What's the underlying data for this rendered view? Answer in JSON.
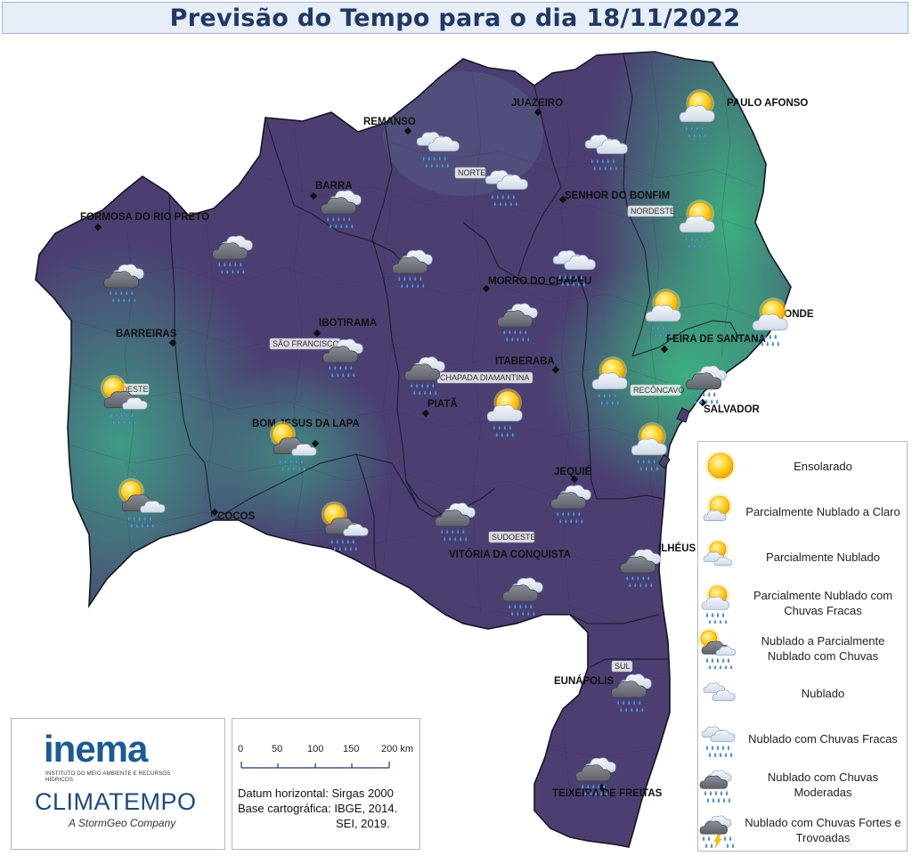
{
  "title": "Previsão do Tempo para o dia 18/11/2022",
  "cities": [
    {
      "name": "REMANSO"
    },
    {
      "name": "JUAZEIRO"
    },
    {
      "name": "PAULO AFONSO"
    },
    {
      "name": "BARRA"
    },
    {
      "name": "FORMOSA DO RIO PRETO"
    },
    {
      "name": "SENHOR DO BONFIM"
    },
    {
      "name": "MORRO DO CHAPÉU"
    },
    {
      "name": "IBOTIRAMA"
    },
    {
      "name": "BARREIRAS"
    },
    {
      "name": "CONDE"
    },
    {
      "name": "FEIRA DE SANTANA"
    },
    {
      "name": "ITABERABA"
    },
    {
      "name": "PIATÃ"
    },
    {
      "name": "SALVADOR"
    },
    {
      "name": "BOM JESUS DA LAPA"
    },
    {
      "name": "JEQUIÉ"
    },
    {
      "name": "COCOS"
    },
    {
      "name": "ILHÉUS"
    },
    {
      "name": "VITÓRIA DA CONQUISTA"
    },
    {
      "name": "EUNÁPOLIS"
    },
    {
      "name": "TEIXEIRA DE FREITAS"
    }
  ],
  "regions": [
    {
      "name": "NORTE"
    },
    {
      "name": "NORDESTE"
    },
    {
      "name": "SÃO FRANCISCO"
    },
    {
      "name": "OESTE"
    },
    {
      "name": "CHAPADA DIAMANTINA"
    },
    {
      "name": "RECÔNCAVO"
    },
    {
      "name": "SUDOESTE"
    },
    {
      "name": "SUL"
    }
  ],
  "forecast_icons": [
    {
      "type": "nublado-chuvas-fracas"
    },
    {
      "type": "nublado-chuvas-fracas"
    },
    {
      "type": "parcialmente-nublado-chuvas-fracas"
    },
    {
      "type": "nublado-chuvas-fracas"
    },
    {
      "type": "nublado-chuvas-moderadas"
    },
    {
      "type": "parcialmente-nublado-chuvas-fracas"
    },
    {
      "type": "nublado-chuvas-moderadas"
    },
    {
      "type": "nublado-chuvas-moderadas"
    },
    {
      "type": "nublado-chuvas-moderadas"
    },
    {
      "type": "nublado-chuvas-fracas"
    },
    {
      "type": "nublado-chuvas-moderadas"
    },
    {
      "type": "parcialmente-nublado-chuvas-fracas"
    },
    {
      "type": "parcialmente-nublado-chuvas-fracas"
    },
    {
      "type": "nublado-chuvas-moderadas"
    },
    {
      "type": "nublado-parcialmente-chuvas"
    },
    {
      "type": "nublado-chuvas-moderadas"
    },
    {
      "type": "parcialmente-nublado-chuvas-fracas"
    },
    {
      "type": "parcialmente-nublado-chuvas-fracas"
    },
    {
      "type": "nublado-chuvas-moderadas"
    },
    {
      "type": "nublado-parcialmente-chuvas"
    },
    {
      "type": "parcialmente-nublado-chuvas-fracas"
    },
    {
      "type": "nublado-parcialmente-chuvas"
    },
    {
      "type": "nublado-parcialmente-chuvas"
    },
    {
      "type": "nublado-chuvas-moderadas"
    },
    {
      "type": "nublado-chuvas-moderadas"
    },
    {
      "type": "nublado-chuvas-moderadas"
    },
    {
      "type": "nublado-chuvas-moderadas"
    },
    {
      "type": "nublado-chuvas-moderadas"
    },
    {
      "type": "nublado-chuvas-moderadas"
    }
  ],
  "legend": [
    {
      "type": "ensolarado",
      "label": "Ensolarado"
    },
    {
      "type": "parcialmente-nublado-claro",
      "label": "Parcialmente Nublado a Claro"
    },
    {
      "type": "parcialmente-nublado",
      "label": "Parcialmente Nublado"
    },
    {
      "type": "parcialmente-nublado-chuvas-fracas",
      "label": "Parcialmente Nublado com Chuvas Fracas"
    },
    {
      "type": "nublado-parcialmente-chuvas",
      "label": "Nublado a Parcialmente Nublado com Chuvas"
    },
    {
      "type": "nublado",
      "label": "Nublado"
    },
    {
      "type": "nublado-chuvas-fracas",
      "label": "Nublado com Chuvas Fracas"
    },
    {
      "type": "nublado-chuvas-moderadas",
      "label": "Nublado com Chuvas Moderadas"
    },
    {
      "type": "nublado-chuvas-fortes-trovoadas",
      "label": "Nublado com Chuvas Fortes e Trovoadas"
    }
  ],
  "logos": {
    "inema": "inema",
    "inema_subtitle": "INSTITUTO DO MEIO AMBIENTE E RECURSOS HÍDRICOS",
    "climatempo": "CLIMATEMPO",
    "stormgeo": "A StormGeo Company"
  },
  "scale": {
    "ticks": [
      "0",
      "50",
      "100",
      "150",
      "200 km"
    ]
  },
  "datum": {
    "line1": "Datum horizontal: Sirgas 2000",
    "line2": "Base cartográfica: IBGE, 2014.",
    "line3": "SEI, 2019."
  },
  "colors": {
    "dry_purple": "#4b3f72",
    "humid_green": "#3aa57f",
    "title_text": "#1f3864"
  }
}
